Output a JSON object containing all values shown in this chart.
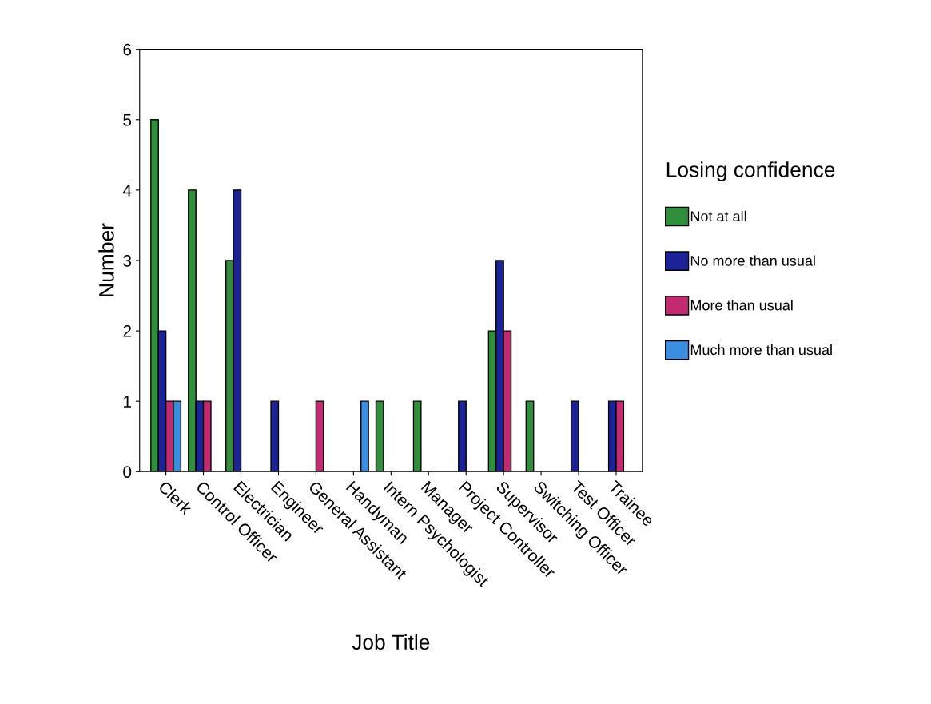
{
  "chart_data": {
    "type": "bar",
    "xlabel": "Job Title",
    "ylabel": "Number",
    "legend_title": "Losing confidence",
    "legend": "right",
    "categories": [
      "Clerk",
      "Control Officer",
      "Electrician",
      "Engineer",
      "General Assistant",
      "Handyman",
      "Intern Psychologist",
      "Manager",
      "Project Controller",
      "Supervisor",
      "Switching Officer",
      "Test Officer",
      "Trainee"
    ],
    "ylim": [
      0,
      6
    ],
    "yticks": [
      0,
      1,
      2,
      3,
      4,
      5,
      6
    ],
    "grid": false,
    "series": [
      {
        "name": "Not at all",
        "color": "#2f8f3a",
        "values": [
          5,
          4,
          3,
          0,
          0,
          0,
          1,
          1,
          0,
          2,
          1,
          0,
          0
        ]
      },
      {
        "name": "No more than usual",
        "color": "#1c2396",
        "values": [
          2,
          1,
          4,
          1,
          0,
          0,
          0,
          0,
          1,
          3,
          0,
          1,
          1
        ]
      },
      {
        "name": "More than usual",
        "color": "#c42a72",
        "values": [
          1,
          1,
          0,
          0,
          1,
          0,
          0,
          0,
          0,
          2,
          0,
          0,
          1
        ]
      },
      {
        "name": "Much more than usual",
        "color": "#3a8ee0",
        "values": [
          1,
          0,
          0,
          0,
          0,
          1,
          0,
          0,
          0,
          0,
          0,
          0,
          0
        ]
      }
    ]
  }
}
